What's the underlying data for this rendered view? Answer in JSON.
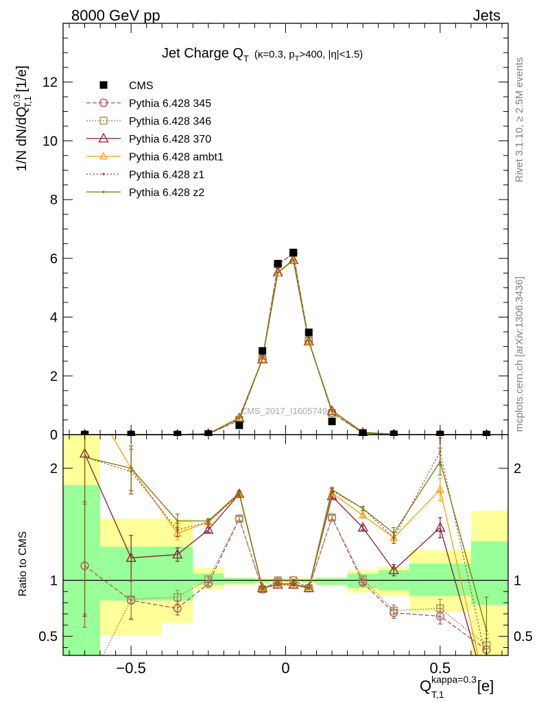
{
  "header": {
    "left": "8000 GeV pp",
    "right": "Jets"
  },
  "plot_title": {
    "main": "Jet Charge Q",
    "sub": "T",
    "detail_a": "(κ=0.3, p",
    "detail_sub": "T",
    "detail_b": ">400, |η|<1.5)"
  },
  "side_labels": {
    "rivet": "Rivet 3.1.10, ≥ 2.5M events",
    "mcplots": "mcplots.cern.ch [arXiv:1306.3436]",
    "analysis": "CMS_2017_I1605749"
  },
  "top_ylabel": {
    "a": "1/N dN/dQ",
    "sup": "0.3",
    "sub": "T,1",
    "b": " [1/e]"
  },
  "ratio_ylabel": "Ratio to CMS",
  "xlabel": {
    "a": "Q",
    "sup": "kappa=0.3",
    "sub": "T,1",
    "b": " [e]"
  },
  "colors": {
    "cms": "#000000",
    "p345": "#b24a50",
    "p346": "#a08550",
    "p370": "#8b1a2a",
    "ambt1": "#f5a000",
    "z1": "#c62828",
    "z2": "#6b7a10",
    "band_green": "#99ff99",
    "band_yellow": "#ffff99"
  },
  "chart_data": [
    {
      "type": "line",
      "panel": "main",
      "xlim": [
        -0.72,
        0.72
      ],
      "ylim": [
        0,
        14
      ],
      "yticks": [
        0,
        2,
        4,
        6,
        8,
        10,
        12
      ],
      "ytick_labels": [
        "0",
        "2",
        "4",
        "6",
        "8",
        "10",
        "12"
      ],
      "x": [
        -0.65,
        -0.5,
        -0.35,
        -0.25,
        -0.15,
        -0.075,
        -0.025,
        0.025,
        0.075,
        0.15,
        0.25,
        0.35,
        0.5,
        0.65
      ],
      "series": [
        {
          "name": "CMS",
          "key": "cms",
          "marker": "square",
          "values": [
            0.0,
            0.0,
            0.0,
            0.02,
            0.32,
            2.85,
            5.82,
            6.2,
            3.48,
            0.45,
            0.05,
            0.01,
            0.0,
            0.0
          ]
        },
        {
          "name": "Pythia 6.428 345",
          "key": "p345",
          "marker": "circle",
          "dash": "6,3",
          "values": [
            0.0,
            0.0,
            0.0,
            0.02,
            0.49,
            2.57,
            5.78,
            6.17,
            3.2,
            0.74,
            0.05,
            0.01,
            0.0,
            0.0
          ]
        },
        {
          "name": "Pythia 6.428 346",
          "key": "p346",
          "marker": "square-open",
          "dash": "2,2",
          "values": [
            0.0,
            0.0,
            0.0,
            0.02,
            0.5,
            2.58,
            5.8,
            6.18,
            3.21,
            0.74,
            0.05,
            0.01,
            0.0,
            0.0
          ]
        },
        {
          "name": "Pythia 6.428 370",
          "key": "p370",
          "marker": "triangle",
          "dash": "",
          "values": [
            0.0,
            0.0,
            0.0,
            0.03,
            0.56,
            2.56,
            5.52,
            5.94,
            3.17,
            0.8,
            0.07,
            0.01,
            0.0,
            0.0
          ]
        },
        {
          "name": "Pythia 6.428 ambt1",
          "key": "ambt1",
          "marker": "triangle-small",
          "dash": "",
          "values": [
            0.0,
            0.0,
            0.0,
            0.03,
            0.57,
            2.56,
            5.5,
            5.93,
            3.16,
            0.8,
            0.08,
            0.01,
            0.0,
            0.0
          ]
        },
        {
          "name": "Pythia 6.428 z1",
          "key": "z1",
          "marker": "dot",
          "dash": "2,3",
          "values": [
            0.0,
            0.0,
            0.0,
            0.03,
            0.57,
            2.58,
            5.52,
            5.95,
            3.17,
            0.82,
            0.08,
            0.01,
            0.0,
            0.0
          ]
        },
        {
          "name": "Pythia 6.428 z2",
          "key": "z2",
          "marker": "dot",
          "dash": "",
          "values": [
            0.0,
            0.0,
            0.0,
            0.03,
            0.57,
            2.58,
            5.52,
            5.95,
            3.17,
            0.82,
            0.08,
            0.01,
            0.0,
            0.0
          ]
        }
      ]
    },
    {
      "type": "line",
      "panel": "ratio",
      "xlim": [
        -0.72,
        0.72
      ],
      "ylim": [
        0.33,
        2.3
      ],
      "yticks": [
        0.5,
        1,
        2
      ],
      "ytick_labels": [
        "0.5",
        "1",
        "2"
      ],
      "xticks": [
        -0.5,
        0,
        0.5
      ],
      "xtick_labels": [
        "−0.5",
        "0",
        "0.5"
      ],
      "reference_line": 1,
      "bands": [
        {
          "x0": -0.72,
          "x1": -0.6,
          "green": [
            0.2,
            1.85
          ],
          "yellow": [
            0.2,
            2.3
          ]
        },
        {
          "x0": -0.6,
          "x1": -0.4,
          "green": [
            0.82,
            1.3
          ],
          "yellow": [
            0.51,
            1.55
          ]
        },
        {
          "x0": -0.4,
          "x1": -0.3,
          "green": [
            0.82,
            1.3
          ],
          "yellow": [
            0.62,
            1.55
          ]
        },
        {
          "x0": -0.3,
          "x1": -0.2,
          "green": [
            0.96,
            1.06
          ],
          "yellow": [
            0.92,
            1.11
          ]
        },
        {
          "x0": -0.2,
          "x1": -0.1,
          "green": [
            0.97,
            1.02
          ],
          "yellow": [
            0.96,
            1.03
          ]
        },
        {
          "x0": -0.1,
          "x1": -0.05,
          "green": [
            0.98,
            1.01
          ],
          "yellow": [
            0.97,
            1.02
          ]
        },
        {
          "x0": -0.05,
          "x1": 0.05,
          "green": [
            0.99,
            1.01
          ],
          "yellow": [
            0.98,
            1.02
          ]
        },
        {
          "x0": 0.05,
          "x1": 0.1,
          "green": [
            0.98,
            1.01
          ],
          "yellow": [
            0.97,
            1.02
          ]
        },
        {
          "x0": 0.1,
          "x1": 0.2,
          "green": [
            0.96,
            1.02
          ],
          "yellow": [
            0.95,
            1.03
          ]
        },
        {
          "x0": 0.2,
          "x1": 0.3,
          "green": [
            0.93,
            1.06
          ],
          "yellow": [
            0.89,
            1.09
          ]
        },
        {
          "x0": 0.3,
          "x1": 0.4,
          "green": [
            0.91,
            1.09
          ],
          "yellow": [
            0.86,
            1.12
          ]
        },
        {
          "x0": 0.4,
          "x1": 0.6,
          "green": [
            0.86,
            1.15
          ],
          "yellow": [
            0.72,
            1.27
          ]
        },
        {
          "x0": 0.6,
          "x1": 0.72,
          "green": [
            0.78,
            1.35
          ],
          "yellow": [
            0.33,
            1.62
          ]
        }
      ],
      "x": [
        -0.65,
        -0.5,
        -0.35,
        -0.25,
        -0.15,
        -0.075,
        -0.025,
        0.025,
        0.075,
        0.15,
        0.25,
        0.35,
        0.5,
        0.65
      ],
      "series": [
        {
          "name": "Pythia 6.428 345",
          "key": "p345",
          "marker": "circle",
          "dash": "6,3",
          "values": [
            1.13,
            0.82,
            0.75,
            0.97,
            1.55,
            0.92,
            0.99,
            1.0,
            0.93,
            1.56,
            0.98,
            0.71,
            0.68,
            0.38
          ],
          "err": [
            0.55,
            0.17,
            0.06,
            0.02,
            0.02,
            0.01,
            0.01,
            0.01,
            0.01,
            0.02,
            0.02,
            0.05,
            0.07,
            0.1
          ]
        },
        {
          "name": "Pythia 6.428 346",
          "key": "p346",
          "marker": "square-open",
          "dash": "2,2",
          "values": [
            0.0,
            0.83,
            0.85,
            1.01,
            1.55,
            0.92,
            1.0,
            1.0,
            0.93,
            1.56,
            1.01,
            0.73,
            0.75,
            0.42
          ],
          "err": [
            0.0,
            0.17,
            0.06,
            0.02,
            0.02,
            0.01,
            0.01,
            0.01,
            0.01,
            0.02,
            0.02,
            0.05,
            0.08,
            0.1
          ]
        },
        {
          "name": "Pythia 6.428 370",
          "key": "p370",
          "marker": "triangle",
          "dash": "",
          "values": [
            2.13,
            1.2,
            1.23,
            1.45,
            1.77,
            0.93,
            0.96,
            0.96,
            0.93,
            1.75,
            1.47,
            1.09,
            1.47,
            0.0
          ],
          "err": [
            1.45,
            0.2,
            0.06,
            0.02,
            0.02,
            0.01,
            0.01,
            0.01,
            0.01,
            0.02,
            0.02,
            0.05,
            0.09,
            0.0
          ]
        },
        {
          "name": "Pythia 6.428 ambt1",
          "key": "ambt1",
          "marker": "triangle-small",
          "dash": "",
          "values": [
            2.7,
            2.0,
            1.42,
            1.52,
            1.77,
            0.93,
            0.96,
            0.96,
            0.93,
            1.78,
            1.58,
            1.38,
            1.81,
            0.0
          ],
          "err": [
            0.4,
            0.2,
            0.06,
            0.02,
            0.02,
            0.01,
            0.01,
            0.01,
            0.01,
            0.02,
            0.02,
            0.05,
            0.1,
            0.0
          ]
        },
        {
          "name": "Pythia 6.428 z1",
          "key": "z1",
          "marker": "dot",
          "dash": "2,3",
          "values": [
            2.1,
            1.97,
            1.45,
            1.52,
            1.77,
            0.93,
            0.96,
            0.96,
            0.93,
            1.8,
            1.64,
            1.38,
            2.15,
            0.28
          ],
          "err": [
            0.4,
            0.2,
            0.06,
            0.02,
            0.02,
            0.01,
            0.01,
            0.01,
            0.01,
            0.02,
            0.02,
            0.05,
            0.12,
            0.2
          ]
        },
        {
          "name": "Pythia 6.428 z2",
          "key": "z2",
          "marker": "dot",
          "dash": "",
          "values": [
            2.1,
            2.0,
            1.53,
            1.53,
            1.78,
            0.93,
            0.97,
            0.97,
            0.93,
            1.81,
            1.64,
            1.42,
            2.06,
            0.55
          ],
          "err": [
            1.4,
            0.2,
            0.06,
            0.02,
            0.02,
            0.01,
            0.01,
            0.01,
            0.01,
            0.02,
            0.02,
            0.05,
            0.12,
            0.3
          ]
        }
      ]
    }
  ]
}
